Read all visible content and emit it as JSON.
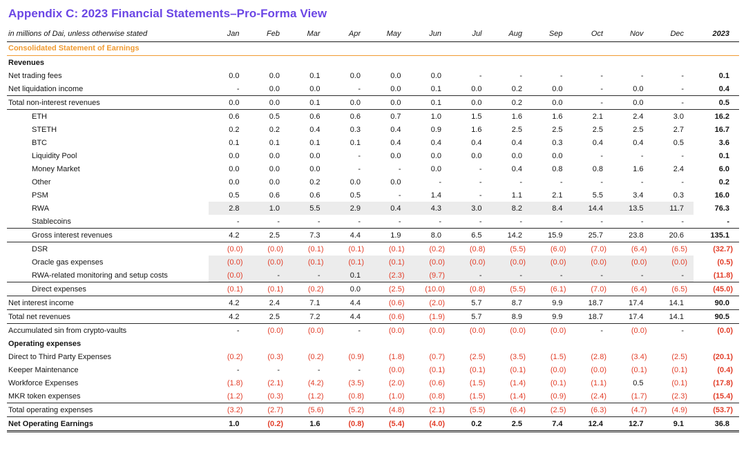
{
  "title": "Appendix C: 2023 Financial Statements–Pro-Forma View",
  "colors": {
    "title": "#6B46E5",
    "section_header": "#F09A30",
    "negative": "#E23D28",
    "row_shading": "#ECECEC"
  },
  "table": {
    "unit_note": "in millions of Dai, unless otherwise stated",
    "columns": [
      "Jan",
      "Feb",
      "Mar",
      "Apr",
      "May",
      "Jun",
      "Jul",
      "Aug",
      "Sep",
      "Oct",
      "Nov",
      "Dec",
      "2023"
    ],
    "section_header": "Consolidated Statement of Earnings",
    "rows": [
      {
        "label": "Revenues",
        "group": true
      },
      {
        "label": "Net trading fees",
        "values": [
          "0.0",
          "0.0",
          "0.1",
          "0.0",
          "0.0",
          "0.0",
          "-",
          "-",
          "-",
          "-",
          "-",
          "-",
          "0.1"
        ]
      },
      {
        "label": "Net liquidation income",
        "values": [
          "-",
          "0.0",
          "0.0",
          "-",
          "0.0",
          "0.1",
          "0.0",
          "0.2",
          "0.0",
          "-",
          "0.0",
          "-",
          "0.4"
        ]
      },
      {
        "label": "Total non-interest revenues",
        "border_top": true,
        "border_bottom": true,
        "values": [
          "0.0",
          "0.0",
          "0.1",
          "0.0",
          "0.0",
          "0.1",
          "0.0",
          "0.2",
          "0.0",
          "-",
          "0.0",
          "-",
          "0.5"
        ]
      },
      {
        "label": "ETH",
        "indent": true,
        "values": [
          "0.6",
          "0.5",
          "0.6",
          "0.6",
          "0.7",
          "1.0",
          "1.5",
          "1.6",
          "1.6",
          "2.1",
          "2.4",
          "3.0",
          "16.2"
        ]
      },
      {
        "label": "STETH",
        "indent": true,
        "values": [
          "0.2",
          "0.2",
          "0.4",
          "0.3",
          "0.4",
          "0.9",
          "1.6",
          "2.5",
          "2.5",
          "2.5",
          "2.5",
          "2.7",
          "16.7"
        ]
      },
      {
        "label": "BTC",
        "indent": true,
        "values": [
          "0.1",
          "0.1",
          "0.1",
          "0.1",
          "0.4",
          "0.4",
          "0.4",
          "0.4",
          "0.3",
          "0.4",
          "0.4",
          "0.5",
          "3.6"
        ]
      },
      {
        "label": "Liquidity Pool",
        "indent": true,
        "values": [
          "0.0",
          "0.0",
          "0.0",
          "-",
          "0.0",
          "0.0",
          "0.0",
          "0.0",
          "0.0",
          "-",
          "-",
          "-",
          "0.1"
        ]
      },
      {
        "label": "Money Market",
        "indent": true,
        "values": [
          "0.0",
          "0.0",
          "0.0",
          "-",
          "-",
          "0.0",
          "-",
          "0.4",
          "0.8",
          "0.8",
          "1.6",
          "2.4",
          "6.0"
        ]
      },
      {
        "label": "Other",
        "indent": true,
        "values": [
          "0.0",
          "0.0",
          "0.2",
          "0.0",
          "0.0",
          "-",
          "-",
          "-",
          "-",
          "-",
          "-",
          "-",
          "0.2"
        ]
      },
      {
        "label": "PSM",
        "indent": true,
        "values": [
          "0.5",
          "0.6",
          "0.6",
          "0.5",
          "-",
          "1.4",
          "-",
          "1.1",
          "2.1",
          "5.5",
          "3.4",
          "0.3",
          "16.0"
        ]
      },
      {
        "label": "RWA",
        "indent": true,
        "shaded": true,
        "values": [
          "2.8",
          "1.0",
          "5.5",
          "2.9",
          "0.4",
          "4.3",
          "3.0",
          "8.2",
          "8.4",
          "14.4",
          "13.5",
          "11.7",
          "76.3"
        ]
      },
      {
        "label": "Stablecoins",
        "indent": true,
        "values": [
          "-",
          "-",
          "-",
          "-",
          "-",
          "-",
          "-",
          "-",
          "-",
          "-",
          "-",
          "-",
          "-"
        ]
      },
      {
        "label": "Gross interest revenues",
        "indent": true,
        "border_top": true,
        "border_bottom": true,
        "values": [
          "4.2",
          "2.5",
          "7.3",
          "4.4",
          "1.9",
          "8.0",
          "6.5",
          "14.2",
          "15.9",
          "25.7",
          "23.8",
          "20.6",
          "135.1"
        ]
      },
      {
        "label": "DSR",
        "indent": true,
        "values": [
          "(0.0)",
          "(0.0)",
          "(0.1)",
          "(0.1)",
          "(0.1)",
          "(0.2)",
          "(0.8)",
          "(5.5)",
          "(6.0)",
          "(7.0)",
          "(6.4)",
          "(6.5)",
          "(32.7)"
        ]
      },
      {
        "label": "Oracle gas expenses",
        "indent": true,
        "shaded": true,
        "values": [
          "(0.0)",
          "(0.0)",
          "(0.1)",
          "(0.1)",
          "(0.1)",
          "(0.0)",
          "(0.0)",
          "(0.0)",
          "(0.0)",
          "(0.0)",
          "(0.0)",
          "(0.0)",
          "(0.5)"
        ]
      },
      {
        "label": "RWA-related monitoring and setup costs",
        "indent": true,
        "shaded": true,
        "values": [
          "(0.0)",
          "-",
          "-",
          "0.1",
          "(2.3)",
          "(9.7)",
          "-",
          "-",
          "-",
          "-",
          "-",
          "-",
          "(11.8)"
        ]
      },
      {
        "label": "Direct expenses",
        "indent": true,
        "border_top": true,
        "border_bottom": true,
        "values": [
          "(0.1)",
          "(0.1)",
          "(0.2)",
          "0.0",
          "(2.5)",
          "(10.0)",
          "(0.8)",
          "(5.5)",
          "(6.1)",
          "(7.0)",
          "(6.4)",
          "(6.5)",
          "(45.0)"
        ]
      },
      {
        "label": "Net interest income",
        "border_bottom": true,
        "values": [
          "4.2",
          "2.4",
          "7.1",
          "4.4",
          "(0.6)",
          "(2.0)",
          "5.7",
          "8.7",
          "9.9",
          "18.7",
          "17.4",
          "14.1",
          "90.0"
        ]
      },
      {
        "label": "Total net revenues",
        "border_bottom": true,
        "values": [
          "4.2",
          "2.5",
          "7.2",
          "4.4",
          "(0.6)",
          "(1.9)",
          "5.7",
          "8.9",
          "9.9",
          "18.7",
          "17.4",
          "14.1",
          "90.5"
        ]
      },
      {
        "label": "Accumulated sin from crypto-vaults",
        "values": [
          "-",
          "(0.0)",
          "(0.0)",
          "-",
          "(0.0)",
          "(0.0)",
          "(0.0)",
          "(0.0)",
          "(0.0)",
          "-",
          "(0.0)",
          "-",
          "(0.0)"
        ]
      },
      {
        "label": "Operating expenses",
        "group": true
      },
      {
        "label": "Direct to Third Party Expenses",
        "values": [
          "(0.2)",
          "(0.3)",
          "(0.2)",
          "(0.9)",
          "(1.8)",
          "(0.7)",
          "(2.5)",
          "(3.5)",
          "(1.5)",
          "(2.8)",
          "(3.4)",
          "(2.5)",
          "(20.1)"
        ]
      },
      {
        "label": "Keeper Maintenance",
        "values": [
          "-",
          "-",
          "-",
          "-",
          "(0.0)",
          "(0.1)",
          "(0.1)",
          "(0.1)",
          "(0.0)",
          "(0.0)",
          "(0.1)",
          "(0.1)",
          "(0.4)"
        ]
      },
      {
        "label": "Workforce Expenses",
        "values": [
          "(1.8)",
          "(2.1)",
          "(4.2)",
          "(3.5)",
          "(2.0)",
          "(0.6)",
          "(1.5)",
          "(1.4)",
          "(0.1)",
          "(1.1)",
          "0.5",
          "(0.1)",
          "(17.8)"
        ]
      },
      {
        "label": "MKR token expenses",
        "values": [
          "(1.2)",
          "(0.3)",
          "(1.2)",
          "(0.8)",
          "(1.0)",
          "(0.8)",
          "(1.5)",
          "(1.4)",
          "(0.9)",
          "(2.4)",
          "(1.7)",
          "(2.3)",
          "(15.4)"
        ]
      },
      {
        "label": "Total operating expenses",
        "border_top": true,
        "border_bottom": true,
        "values": [
          "(3.2)",
          "(2.7)",
          "(5.6)",
          "(5.2)",
          "(4.8)",
          "(2.1)",
          "(5.5)",
          "(6.4)",
          "(2.5)",
          "(6.3)",
          "(4.7)",
          "(4.9)",
          "(53.7)"
        ]
      },
      {
        "label": "Net Operating Earnings",
        "bold": true,
        "double_bottom": true,
        "values": [
          "1.0",
          "(0.2)",
          "1.6",
          "(0.8)",
          "(5.4)",
          "(4.0)",
          "0.2",
          "2.5",
          "7.4",
          "12.4",
          "12.7",
          "9.1",
          "36.8"
        ]
      }
    ]
  }
}
